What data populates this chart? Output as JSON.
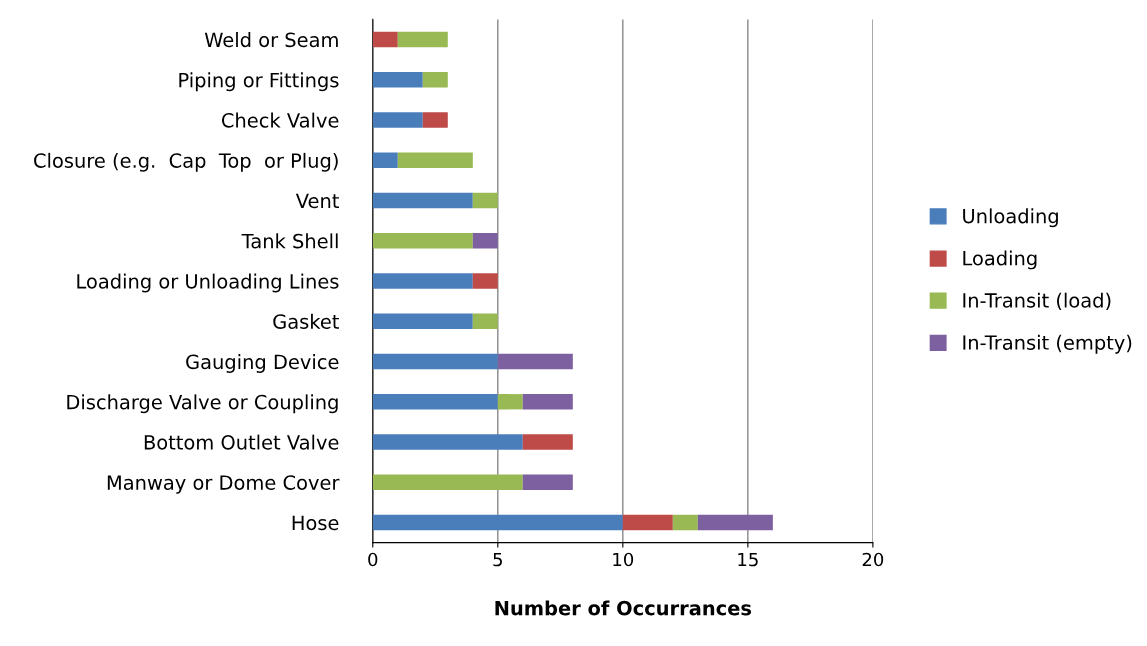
{
  "chart_data": {
    "type": "bar",
    "orientation": "horizontal",
    "stacked": true,
    "xlabel": "Number of Occurrances",
    "categories": [
      "Weld or Seam",
      "Piping or Fittings",
      "Check Valve",
      "Closure (e.g.  Cap  Top  or Plug)",
      "Vent",
      "Tank Shell",
      "Loading or Unloading Lines",
      "Gasket",
      "Gauging Device",
      "Discharge Valve or Coupling",
      "Bottom Outlet Valve",
      "Manway or Dome Cover",
      "Hose"
    ],
    "series": [
      {
        "name": "Unloading",
        "color": "#4a7ebb",
        "values": [
          0,
          2,
          2,
          1,
          4,
          0,
          4,
          4,
          5,
          5,
          6,
          0,
          10
        ]
      },
      {
        "name": "Loading",
        "color": "#be4b48",
        "values": [
          1,
          0,
          1,
          0,
          0,
          0,
          1,
          0,
          0,
          0,
          2,
          0,
          2
        ]
      },
      {
        "name": "In-Transit (load)",
        "color": "#98b954",
        "values": [
          2,
          1,
          0,
          3,
          1,
          4,
          0,
          1,
          0,
          1,
          0,
          6,
          1
        ]
      },
      {
        "name": "In-Transit (empty)",
        "color": "#7d60a0",
        "values": [
          0,
          0,
          0,
          0,
          0,
          1,
          0,
          0,
          3,
          2,
          0,
          2,
          3
        ]
      }
    ],
    "xlim": [
      0,
      20
    ],
    "xticks": [
      0,
      5,
      10,
      15,
      20
    ],
    "grid": "x",
    "legend": "right"
  }
}
